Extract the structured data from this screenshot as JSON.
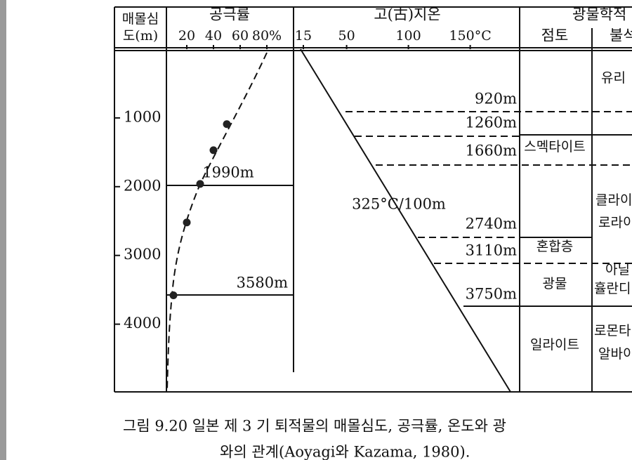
{
  "header": {
    "depth_label": [
      "매몰심",
      "도(m)"
    ],
    "porosity_title": "공극률",
    "porosity_ticks": [
      20,
      40,
      60,
      {
        "value": 80,
        "label": "80%"
      }
    ],
    "temperature_title": "고(古)지온",
    "temperature_ticks": [
      15,
      50,
      100,
      {
        "value": 150,
        "label": "150°C"
      }
    ],
    "mineral_title": "광물학적",
    "clay_title": "점토",
    "zeolite_title": "불석"
  },
  "depth_ticks": [
    1000,
    2000,
    3000,
    4000
  ],
  "porosity_points": [
    {
      "porosity": 50,
      "depth": 1090
    },
    {
      "porosity": 40,
      "depth": 1470
    },
    {
      "porosity": 30,
      "depth": 1960
    },
    {
      "porosity": 20,
      "depth": 2520
    },
    {
      "porosity": 10,
      "depth": 3580
    }
  ],
  "porosity_markers": [
    "1990m",
    "3580m"
  ],
  "gradient_label": "325°C/100m",
  "temperature_markers": [
    "920m",
    "1260m",
    "1660m",
    "2740m",
    "3110m",
    "3750m"
  ],
  "clay_zones": [
    "스멕타이트",
    "혼합층",
    "광물",
    "일라이트"
  ],
  "zeolite_zones": [
    "유리",
    [
      "클라이",
      "로라이"
    ],
    [
      "아닐",
      "휼란디"
    ],
    [
      "로몬타",
      "알바이"
    ]
  ],
  "caption": [
    "그림 9.20  일본 제 3 기 퇴적물의 매몰심도, 공극률, 온도와 광",
    "와의 관계(Aoyagi와 Kazama, 1980)."
  ]
}
